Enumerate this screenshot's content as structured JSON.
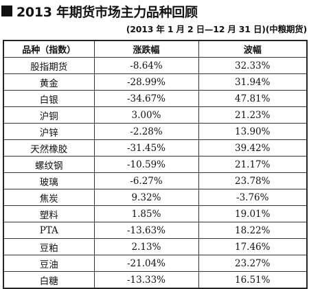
{
  "title": "2013 年期货市场主力品种回顾",
  "subtitle": "(2013 年 1 月 2 日—12 月 31 日)(中粮期货)",
  "table": {
    "headers": [
      "品种（指数）",
      "涨跌幅",
      "波幅"
    ],
    "rows": [
      [
        "股指期货",
        "-8.64%",
        "32.33%"
      ],
      [
        "黄金",
        "-28.99%",
        "31.94%"
      ],
      [
        "白银",
        "-34.67%",
        "47.81%"
      ],
      [
        "沪铜",
        "3.00%",
        "21.23%"
      ],
      [
        "沪锌",
        "-2.28%",
        "13.90%"
      ],
      [
        "天然橡胶",
        "-31.45%",
        "39.42%"
      ],
      [
        "螺纹钢",
        "-10.59%",
        "21.17%"
      ],
      [
        "玻璃",
        "-6.27%",
        "23.78%"
      ],
      [
        "焦炭",
        "9.32%",
        "-3.76%"
      ],
      [
        "塑料",
        "1.85%",
        "19.01%"
      ],
      [
        "PTA",
        "-13.63%",
        "18.22%"
      ],
      [
        "豆粕",
        "2.13%",
        "17.46%"
      ],
      [
        "豆油",
        "-21.04%",
        "23.27%"
      ],
      [
        "白糖",
        "-13.33%",
        "16.51%"
      ]
    ]
  }
}
